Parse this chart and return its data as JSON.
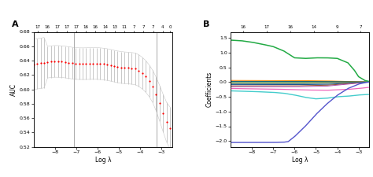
{
  "panel_A": {
    "title": "A",
    "xlabel": "Log λ",
    "ylabel": "AUC",
    "xlim": [
      -9,
      -2.5
    ],
    "ylim": [
      0.52,
      0.68
    ],
    "yticks": [
      0.52,
      0.54,
      0.56,
      0.58,
      0.6,
      0.62,
      0.64,
      0.66,
      0.68
    ],
    "xticks": [
      -8,
      -7,
      -6,
      -5,
      -4,
      -3
    ],
    "top_labels": [
      "17",
      "16",
      "17",
      "17",
      "17",
      "16",
      "16",
      "14",
      "13",
      "11",
      "7",
      "7",
      "7",
      "4",
      "0"
    ],
    "top_x": [
      -8.8,
      -8.35,
      -7.9,
      -7.45,
      -7.0,
      -6.55,
      -6.1,
      -5.65,
      -5.2,
      -4.75,
      -4.3,
      -3.85,
      -3.4,
      -2.95,
      -2.6
    ],
    "vline1": -7.1,
    "vline2": -3.25,
    "dot_color": "red",
    "error_color": "#cccccc"
  },
  "panel_B": {
    "title": "B",
    "xlabel": "Log λ",
    "ylabel": "Coefficients",
    "xlim": [
      -9,
      -2.5
    ],
    "ylim": [
      -2.2,
      1.7
    ],
    "yticks": [
      -2.0,
      -1.5,
      -1.0,
      -0.5,
      0.0,
      0.5,
      1.0,
      1.5
    ],
    "xticks": [
      -8,
      -7,
      -6,
      -5,
      -4,
      -3
    ],
    "top_labels": [
      "16",
      "17",
      "16",
      "14",
      "9",
      "7"
    ],
    "top_x": [
      -8.4,
      -7.3,
      -6.2,
      -5.1,
      -4.0,
      -2.9
    ]
  }
}
